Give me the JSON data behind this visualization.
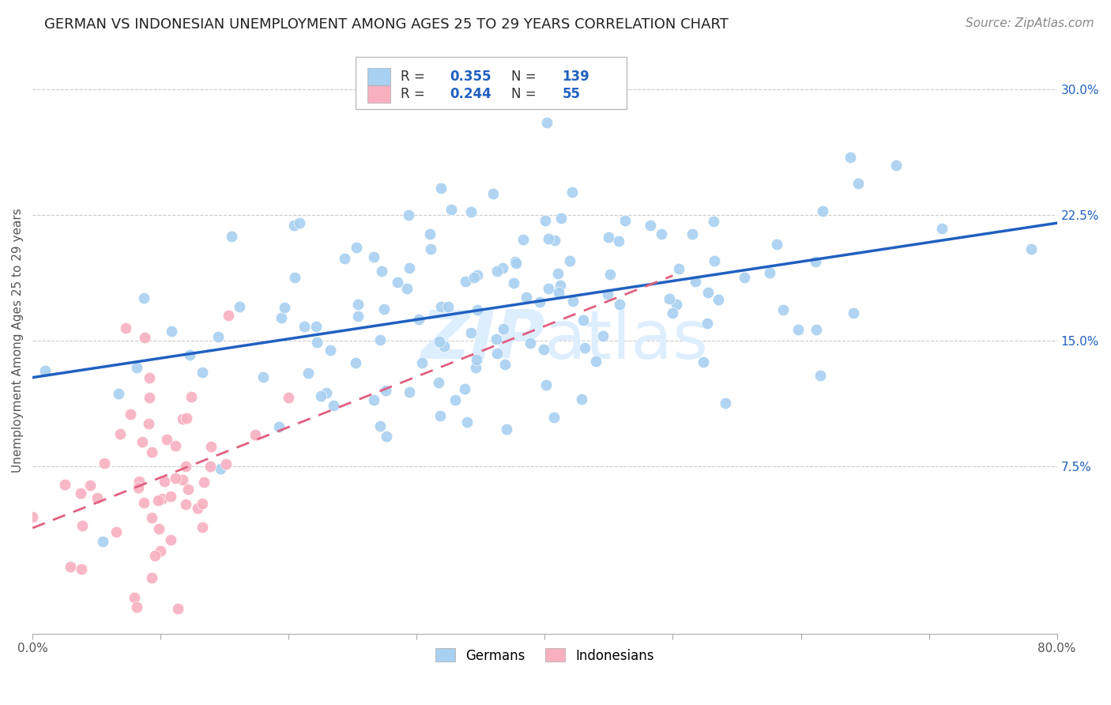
{
  "title": "GERMAN VS INDONESIAN UNEMPLOYMENT AMONG AGES 25 TO 29 YEARS CORRELATION CHART",
  "source": "Source: ZipAtlas.com",
  "ylabel": "Unemployment Among Ages 25 to 29 years",
  "xlim": [
    0.0,
    0.8
  ],
  "ylim": [
    -0.025,
    0.325
  ],
  "xticks": [
    0.0,
    0.1,
    0.2,
    0.3,
    0.4,
    0.5,
    0.6,
    0.7,
    0.8
  ],
  "xticklabels": [
    "0.0%",
    "",
    "",
    "",
    "",
    "",
    "",
    "",
    "80.0%"
  ],
  "yticks": [
    0.075,
    0.15,
    0.225,
    0.3
  ],
  "yticklabels": [
    "7.5%",
    "15.0%",
    "22.5%",
    "30.0%"
  ],
  "german_R": 0.355,
  "german_N": 139,
  "indonesian_R": 0.244,
  "indonesian_N": 55,
  "german_color": "#a8d0f0",
  "german_line_color": "#2060c0",
  "indonesian_color": "#f8b0c0",
  "indonesian_line_color": "#e06080",
  "background_color": "#ffffff",
  "grid_color": "#cccccc",
  "watermark_color": "#ddeeff",
  "title_fontsize": 13,
  "axis_label_fontsize": 11,
  "tick_fontsize": 11,
  "legend_fontsize": 12,
  "source_fontsize": 11
}
